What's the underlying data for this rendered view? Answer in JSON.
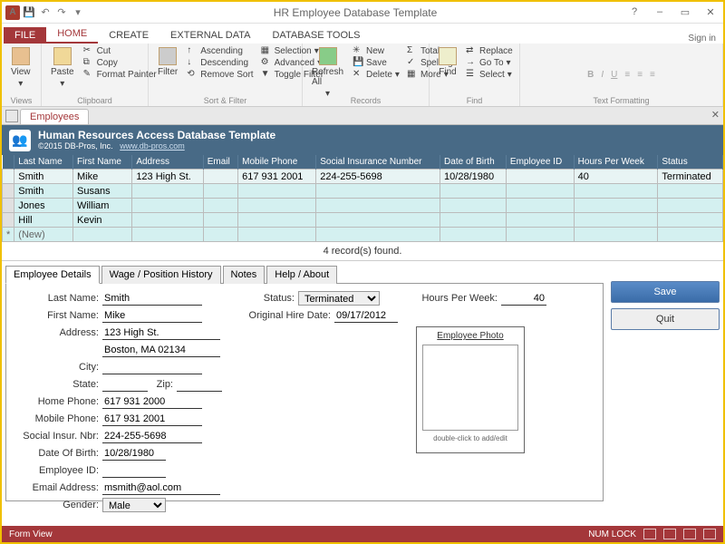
{
  "window": {
    "title": "HR Employee Database Template",
    "signin": "Sign in"
  },
  "tabs": {
    "file": "FILE",
    "home": "HOME",
    "create": "CREATE",
    "external": "EXTERNAL DATA",
    "dbtools": "DATABASE TOOLS"
  },
  "ribbon": {
    "views": {
      "label": "Views",
      "view": "View"
    },
    "clipboard": {
      "label": "Clipboard",
      "paste": "Paste",
      "cut": "Cut",
      "copy": "Copy",
      "fmt": "Format Painter"
    },
    "sortfilter": {
      "label": "Sort & Filter",
      "filter": "Filter",
      "asc": "Ascending",
      "desc": "Descending",
      "remove": "Remove Sort",
      "selection": "Selection",
      "advanced": "Advanced",
      "toggle": "Toggle Filter"
    },
    "records": {
      "label": "Records",
      "refresh": "Refresh All",
      "new": "New",
      "save": "Save",
      "delete": "Delete",
      "totals": "Totals",
      "spelling": "Spelling",
      "more": "More"
    },
    "find": {
      "label": "Find",
      "find": "Find",
      "replace": "Replace",
      "goto": "Go To",
      "select": "Select"
    },
    "textfmt": {
      "label": "Text Formatting"
    }
  },
  "objtab": "Employees",
  "formheader": {
    "title": "Human Resources Access Database Template",
    "copyright": "©2015 DB-Pros, Inc.",
    "url": "www.db-pros.com"
  },
  "columns": [
    "Last Name",
    "First Name",
    "Address",
    "Email",
    "Mobile Phone",
    "Social Insurance Number",
    "Date of Birth",
    "Employee ID",
    "Hours Per Week",
    "Status"
  ],
  "rows": [
    {
      "last": "Smith",
      "first": "Mike",
      "addr": "123 High St.",
      "email": "",
      "mobile": "617 931 2001",
      "sin": "224-255-5698",
      "dob": "10/28/1980",
      "eid": "",
      "hpw": "40",
      "status": "Terminated"
    },
    {
      "last": "Smith",
      "first": "Susans",
      "addr": "",
      "email": "",
      "mobile": "",
      "sin": "",
      "dob": "",
      "eid": "",
      "hpw": "",
      "status": ""
    },
    {
      "last": "Jones",
      "first": "William",
      "addr": "",
      "email": "",
      "mobile": "",
      "sin": "",
      "dob": "",
      "eid": "",
      "hpw": "",
      "status": ""
    },
    {
      "last": "Hill",
      "first": "Kevin",
      "addr": "",
      "email": "",
      "mobile": "",
      "sin": "",
      "dob": "",
      "eid": "",
      "hpw": "",
      "status": ""
    }
  ],
  "newrow": "(New)",
  "recordsfound": "4 record(s) found.",
  "dtabs": {
    "details": "Employee Details",
    "wage": "Wage / Position History",
    "notes": "Notes",
    "help": "Help / About"
  },
  "detail": {
    "lastname_l": "Last Name:",
    "lastname": "Smith",
    "firstname_l": "First Name:",
    "firstname": "Mike",
    "address_l": "Address:",
    "address1": "123 High St.",
    "address2": "Boston, MA 02134",
    "city_l": "City:",
    "city": "",
    "state_l": "State:",
    "state": "",
    "zip_l": "Zip:",
    "zip": "",
    "homephone_l": "Home Phone:",
    "homephone": "617 931 2000",
    "mobile_l": "Mobile Phone:",
    "mobile": "617 931 2001",
    "sin_l": "Social Insur. Nbr:",
    "sin": "224-255-5698",
    "dob_l": "Date Of Birth:",
    "dob": "10/28/1980",
    "eid_l": "Employee ID:",
    "eid": "",
    "email_l": "Email Address:",
    "email": "msmith@aol.com",
    "gender_l": "Gender:",
    "gender": "Male",
    "status_l": "Status:",
    "status": "Terminated",
    "hiredate_l": "Original Hire Date:",
    "hiredate": "09/17/2012",
    "hpw_l": "Hours Per Week:",
    "hpw": "40",
    "photo_title": "Employee Photo",
    "photo_hint": "double-click to add/edit"
  },
  "buttons": {
    "save": "Save",
    "quit": "Quit"
  },
  "status": {
    "left": "Form View",
    "numlock": "NUM LOCK"
  },
  "colors": {
    "brand": "#a4373a",
    "hdr": "#486a86",
    "row": "#d4f0f0"
  }
}
